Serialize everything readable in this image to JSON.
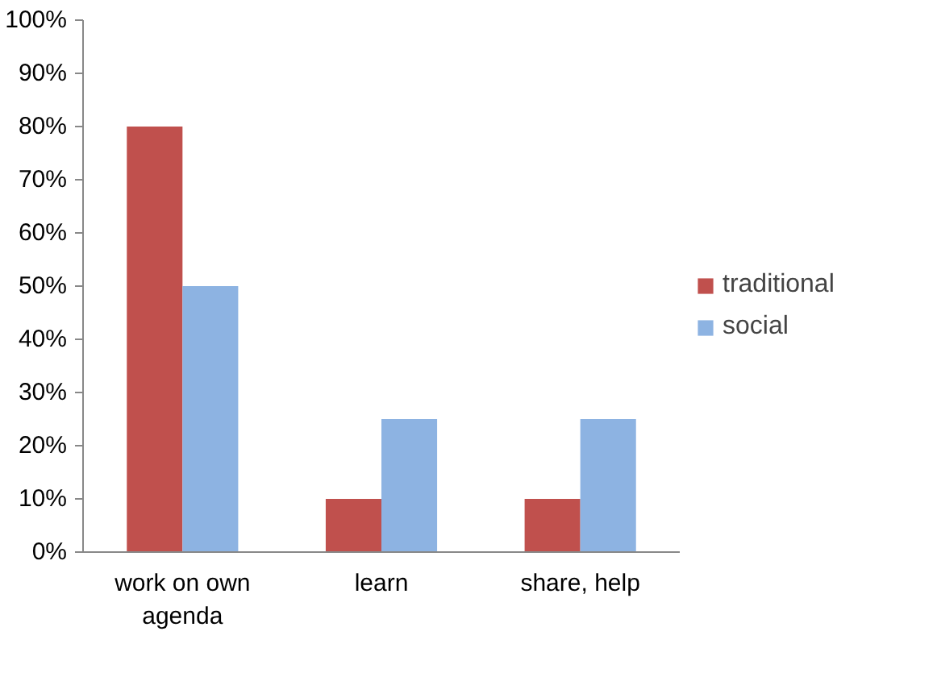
{
  "chart_data": {
    "type": "bar",
    "categories": [
      "work on own agenda",
      "learn",
      "share, help"
    ],
    "series": [
      {
        "name": "traditional",
        "color": "#c0504d",
        "values": [
          80,
          10,
          10
        ]
      },
      {
        "name": "social",
        "color": "#8db3e2",
        "values": [
          50,
          25,
          25
        ]
      }
    ],
    "ylim": [
      0,
      100
    ],
    "yticks": [
      {
        "value": 0,
        "label": "0%"
      },
      {
        "value": 10,
        "label": "10%"
      },
      {
        "value": 20,
        "label": "20%"
      },
      {
        "value": 30,
        "label": "30%"
      },
      {
        "value": 40,
        "label": "40%"
      },
      {
        "value": 50,
        "label": "50%"
      },
      {
        "value": 60,
        "label": "60%"
      },
      {
        "value": 70,
        "label": "70%"
      },
      {
        "value": 80,
        "label": "80%"
      },
      {
        "value": 90,
        "label": "90%"
      },
      {
        "value": 100,
        "label": "100%"
      }
    ],
    "grid": false,
    "legend": "right"
  }
}
